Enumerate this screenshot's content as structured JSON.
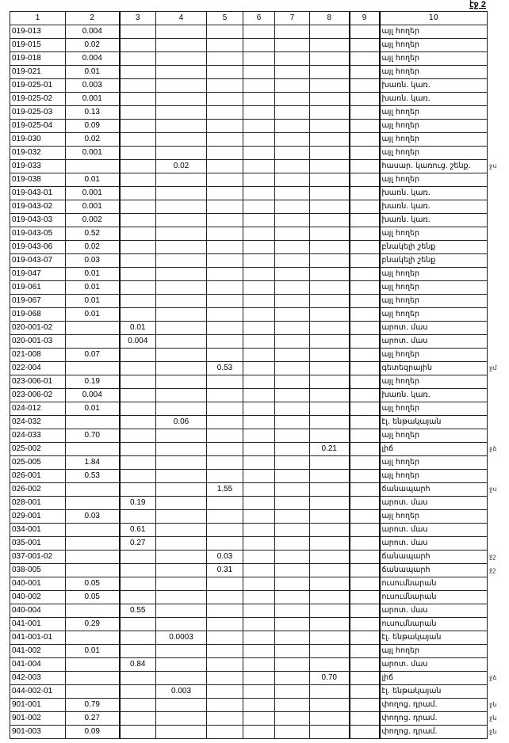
{
  "page_label": "էջ 2",
  "columns": [
    "1",
    "2",
    "3",
    "4",
    "5",
    "6",
    "7",
    "8",
    "9",
    "10"
  ],
  "rows": [
    {
      "id": "019-013",
      "c2": "0.004",
      "c10": "այլ հողեր"
    },
    {
      "id": "019-015",
      "c2": "0.02",
      "c10": "այլ հողեր"
    },
    {
      "id": "019-018",
      "c2": "0.004",
      "c10": "այլ հողեր"
    },
    {
      "id": "019-021",
      "c2": "0.01",
      "c10": "այլ հողեր"
    },
    {
      "id": "019-025-01",
      "c2": "0.003",
      "c10": "խառն. կառ."
    },
    {
      "id": "019-025-02",
      "c2": "0.001",
      "c10": "խառն. կառ."
    },
    {
      "id": "019-025-03",
      "c2": "0.13",
      "c10": "այլ հողեր"
    },
    {
      "id": "019-025-04",
      "c2": "0.09",
      "c10": "այլ հողեր"
    },
    {
      "id": "019-030",
      "c2": "0.02",
      "c10": "այլ հողեր"
    },
    {
      "id": "019-032",
      "c2": "0.001",
      "c10": "այլ հողեր"
    },
    {
      "id": "019-033",
      "c4": "0.02",
      "c10": "հասար. կառուց. շենք.",
      "mark": "ջս"
    },
    {
      "id": "019-038",
      "c2": "0.01",
      "c10": "այլ հողեր"
    },
    {
      "id": "019-043-01",
      "c2": "0.001",
      "c10": "խառն. կառ."
    },
    {
      "id": "019-043-02",
      "c2": "0.001",
      "c10": "խառն. կառ."
    },
    {
      "id": "019-043-03",
      "c2": "0.002",
      "c10": "խառն. կառ."
    },
    {
      "id": "019-043-05",
      "c2": "0.52",
      "c10": "այլ հողեր"
    },
    {
      "id": "019-043-06",
      "c2": "0.02",
      "c10": "բնակելի շենք"
    },
    {
      "id": "019-043-07",
      "c2": "0.03",
      "c10": "բնակելի շենք"
    },
    {
      "id": "019-047",
      "c2": "0.01",
      "c10": "այլ հողեր"
    },
    {
      "id": "019-061",
      "c2": "0.01",
      "c10": "այլ հողեր"
    },
    {
      "id": "019-067",
      "c2": "0.01",
      "c10": "այլ հողեր"
    },
    {
      "id": "019-068",
      "c2": "0.01",
      "c10": "այլ հողեր"
    },
    {
      "id": "020-001-02",
      "c3": "0.01",
      "c10": "արոտ. մաս"
    },
    {
      "id": "020-001-03",
      "c3": "0.004",
      "c10": "արոտ. մաս"
    },
    {
      "id": "021-008",
      "c2": "0.07",
      "c10": "այլ հողեր"
    },
    {
      "id": "022-004",
      "c5": "0.53",
      "c10": "գետեզրային",
      "mark": "ջմ"
    },
    {
      "id": "023-006-01",
      "c2": "0.19",
      "c10": "այլ հողեր"
    },
    {
      "id": "023-006-02",
      "c2": "0.004",
      "c10": "խառն. կառ."
    },
    {
      "id": "024-012",
      "c2": "0.01",
      "c10": "այլ հողեր"
    },
    {
      "id": "024-032",
      "c4": "0.06",
      "c10": "էլ. ենթակայան"
    },
    {
      "id": "024-033",
      "c2": "0.70",
      "c10": "այլ հողեր"
    },
    {
      "id": "025-002",
      "c8": "0.21",
      "c10": "լիճ",
      "mark": "ջձ"
    },
    {
      "id": "025-005",
      "c2": "1.84",
      "c10": "այլ հողեր"
    },
    {
      "id": "026-001",
      "c2": "0.53",
      "c10": "այլ հողեր"
    },
    {
      "id": "026-002",
      "c5": "1.55",
      "c10": "ճանապարհ",
      "mark": "ջս"
    },
    {
      "id": "028-001",
      "c3": "0.19",
      "c10": "արոտ. մաս"
    },
    {
      "id": "029-001",
      "c2": "0.03",
      "c10": "այլ հողեր"
    },
    {
      "id": "034-001",
      "c3": "0.61",
      "c10": "արոտ. մաս"
    },
    {
      "id": "035-001",
      "c3": "0.27",
      "c10": "արոտ. մաս"
    },
    {
      "id": "037-001-02",
      "c5": "0.03",
      "c10": "ճանապարհ",
      "mark": "ջշ"
    },
    {
      "id": "038-005",
      "c5": "0.31",
      "c10": "ճանապարհ",
      "mark": "ջշ"
    },
    {
      "id": "040-001",
      "c2": "0.05",
      "c10": "ուսումնարան"
    },
    {
      "id": "040-002",
      "c2": "0.05",
      "c10": "ուսումնարան"
    },
    {
      "id": "040-004",
      "c3": "0.55",
      "c10": "արոտ. մաս"
    },
    {
      "id": "041-001",
      "c2": "0.29",
      "c10": "ուսումնարան"
    },
    {
      "id": "041-001-01",
      "c4": "0.0003",
      "c10": "էլ. ենթակայան"
    },
    {
      "id": "041-002",
      "c2": "0.01",
      "c10": "այլ հողեր"
    },
    {
      "id": "041-004",
      "c3": "0.84",
      "c10": "արոտ. մաս"
    },
    {
      "id": "042-003",
      "c8": "0.70",
      "c10": "լիճ",
      "mark": "ջձ"
    },
    {
      "id": "044-002-01",
      "c4": "0.003",
      "c10": "էլ. ենթակայան"
    },
    {
      "id": "901-001",
      "c2": "0.79",
      "c10": "փողոց. դրամ.",
      "mark": "ջն"
    },
    {
      "id": "901-002",
      "c2": "0.27",
      "c10": "փողոց. դրամ.",
      "mark": "ջն"
    },
    {
      "id": "901-003",
      "c2": "0.09",
      "c10": "փողոց. դրամ.",
      "mark": "ջն"
    }
  ]
}
